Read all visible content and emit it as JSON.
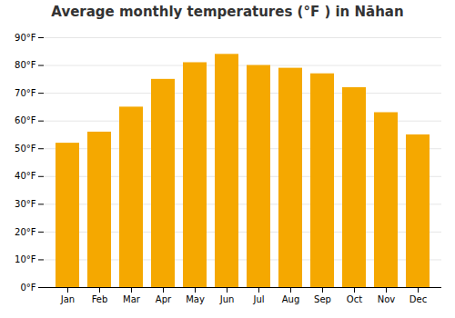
{
  "chart_data": {
    "type": "bar",
    "title": "Average monthly temperatures (°F ) in Nāhan",
    "categories": [
      "Jan",
      "Feb",
      "Mar",
      "Apr",
      "May",
      "Jun",
      "Jul",
      "Aug",
      "Sep",
      "Oct",
      "Nov",
      "Dec"
    ],
    "values": [
      52,
      56,
      65,
      75,
      81,
      84,
      80,
      79,
      77,
      72,
      63,
      55
    ],
    "color": "#F5A800",
    "ylim": [
      0,
      90
    ],
    "yticks": [
      {
        "value": 0,
        "label": "0°F"
      },
      {
        "value": 10,
        "label": "10°F"
      },
      {
        "value": 20,
        "label": "20°F"
      },
      {
        "value": 30,
        "label": "30°F"
      },
      {
        "value": 40,
        "label": "40°F"
      },
      {
        "value": 50,
        "label": "50°F"
      },
      {
        "value": 60,
        "label": "60°F"
      },
      {
        "value": 70,
        "label": "70°F"
      },
      {
        "value": 80,
        "label": "80°F"
      },
      {
        "value": 90,
        "label": "90°F"
      }
    ],
    "grid": true
  }
}
